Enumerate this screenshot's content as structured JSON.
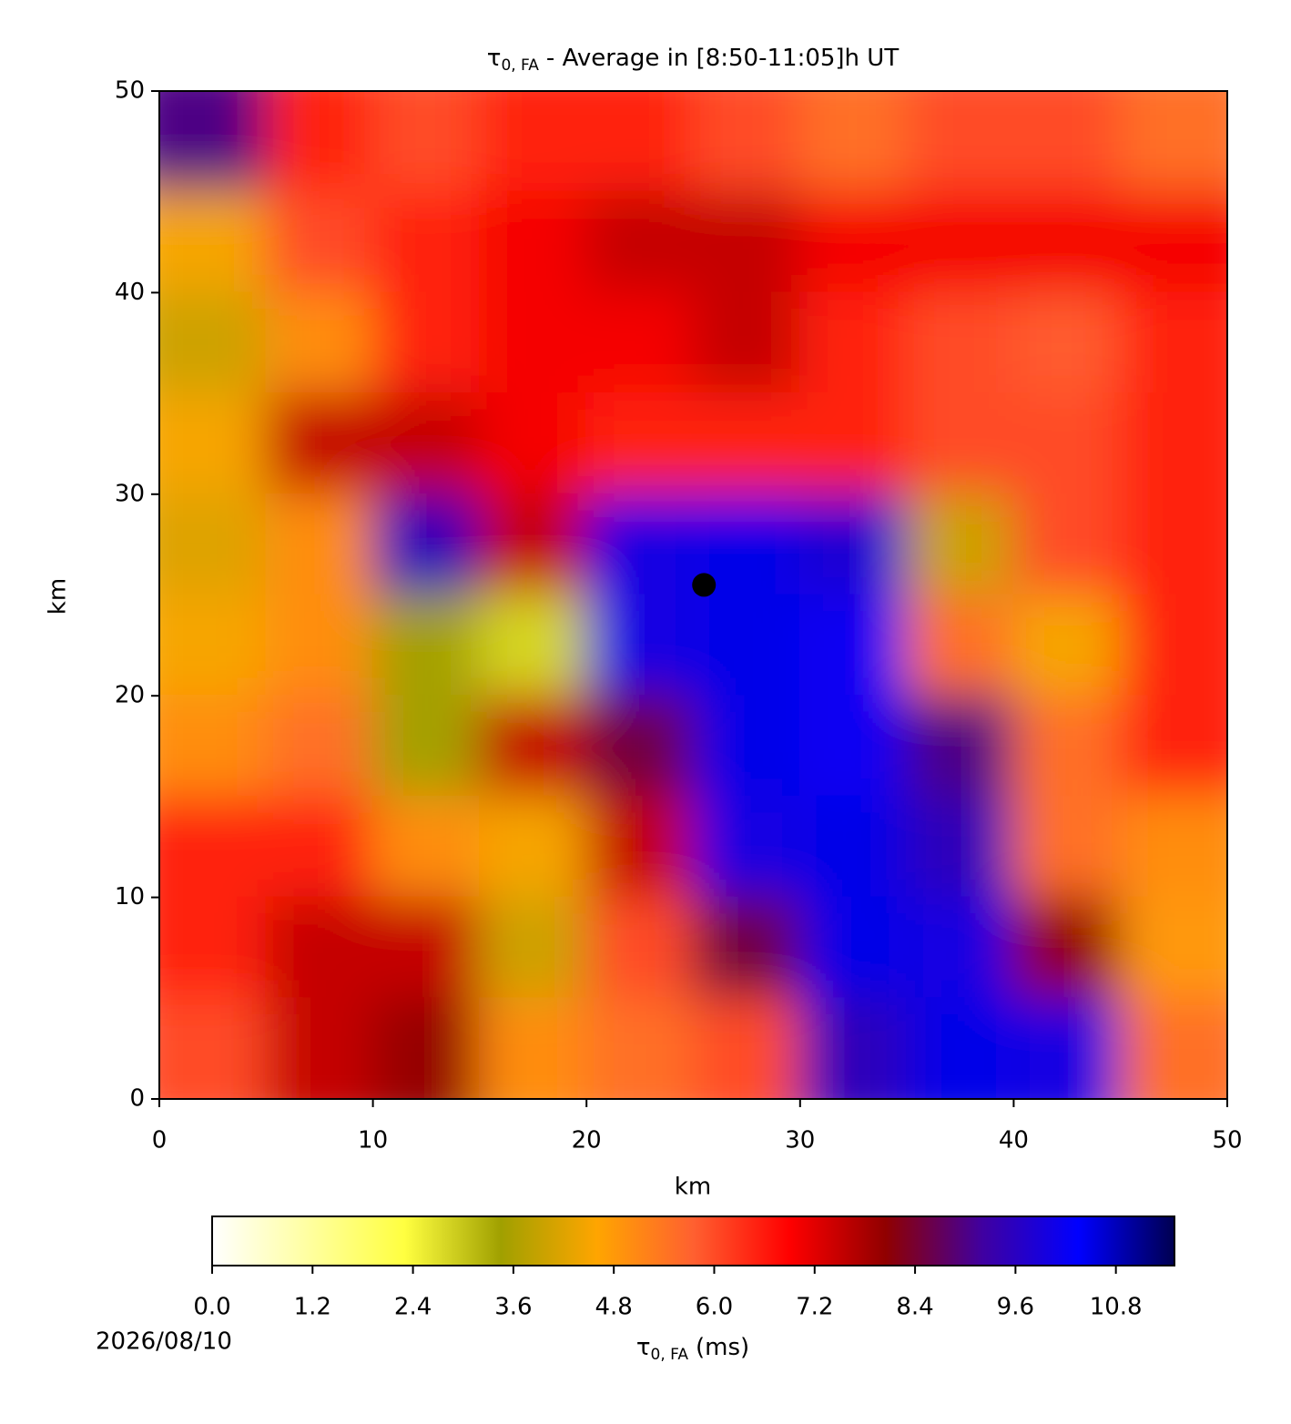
{
  "chart_data": {
    "type": "heatmap",
    "title": {
      "symbol": "τ",
      "subscript": "0, FA",
      "text": "- Average in [8:50-11:05]h UT"
    },
    "x_label": "km",
    "y_label": "km",
    "xlim": [
      0,
      50
    ],
    "ylim": [
      0,
      50
    ],
    "xticks": [
      0,
      10,
      20,
      30,
      40,
      50
    ],
    "yticks": [
      0,
      10,
      20,
      30,
      40,
      50
    ],
    "x": [
      0,
      5,
      10,
      15,
      20,
      25,
      30,
      35,
      40,
      45,
      50
    ],
    "y": [
      50,
      45,
      40,
      35,
      30,
      25,
      20,
      15,
      10,
      5,
      0
    ],
    "values": [
      [
        9,
        6.5,
        6,
        6.5,
        6.5,
        6,
        5.5,
        6,
        6,
        5.5
      ],
      [
        4.5,
        6,
        6.5,
        7,
        7.5,
        7.5,
        7,
        7,
        7,
        7
      ],
      [
        4,
        5,
        6.5,
        7,
        7,
        7.5,
        6.5,
        6,
        5.8,
        6.5
      ],
      [
        4.5,
        7.5,
        7.5,
        7,
        6.5,
        6.5,
        6.5,
        6,
        6,
        6.5
      ],
      [
        4.2,
        5,
        9.5,
        7.5,
        10,
        10.5,
        9.8,
        4,
        6,
        6.5
      ],
      [
        4.5,
        5,
        3.5,
        2.8,
        10,
        10.5,
        10.2,
        5.5,
        4.5,
        6.5
      ],
      [
        5,
        5.5,
        3.5,
        7.5,
        8.5,
        10.5,
        10.2,
        9,
        5.5,
        6.5
      ],
      [
        6.5,
        6.5,
        5,
        4.5,
        7.5,
        10,
        10.5,
        9.5,
        5.5,
        5
      ],
      [
        6.5,
        7.5,
        7.5,
        4,
        6,
        8.5,
        10.5,
        10,
        8,
        4.8
      ],
      [
        6,
        7.5,
        8,
        5,
        5.5,
        6,
        9.5,
        10.5,
        10,
        5.5
      ]
    ],
    "marker": {
      "x": 25.5,
      "y": 25.5,
      "color": "#000000"
    },
    "colormap": [
      "#ffffff",
      "#ffffa0",
      "#ffff40",
      "#a0a000",
      "#ffa500",
      "#ff6030",
      "#ff0000",
      "#900000",
      "#4000a0",
      "#0000ff",
      "#000050"
    ],
    "clim": [
      0,
      11.5
    ],
    "cticks": [
      {
        "value": 0,
        "label": "0.0"
      },
      1.2,
      2.4,
      3.6,
      4.8,
      {
        "value": 6,
        "label": "6.0"
      },
      7.2,
      8.4,
      9.6,
      10.8
    ],
    "colorbar_label": {
      "symbol": "τ",
      "subscript": "0, FA",
      "text": "(ms)"
    },
    "date": "2026/08/10"
  }
}
